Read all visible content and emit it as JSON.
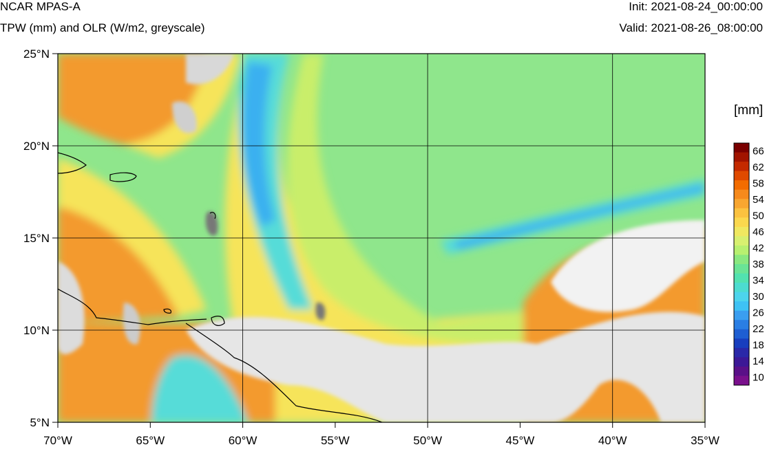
{
  "header": {
    "model": "NCAR MPAS-A",
    "fields": "TPW (mm) and OLR (W/m2, greyscale)",
    "init": "Init: 2021-08-24_00:00:00",
    "valid": "Valid: 2021-08-26_08:00:00"
  },
  "axes": {
    "lat_ticks": [
      "25°N",
      "20°N",
      "15°N",
      "10°N",
      "5°N"
    ],
    "lon_ticks": [
      "70°W",
      "65°W",
      "60°W",
      "55°W",
      "50°W",
      "45°W",
      "40°W",
      "35°W"
    ],
    "lat_range": [
      5,
      25
    ],
    "lon_range": [
      -70,
      -35
    ],
    "grid": true
  },
  "colorbar": {
    "unit": "[mm]",
    "labels": [
      "66",
      "62",
      "58",
      "54",
      "50",
      "46",
      "42",
      "38",
      "34",
      "30",
      "26",
      "22",
      "18",
      "14",
      "10"
    ],
    "colors": [
      "#7a0000",
      "#a11400",
      "#c42a00",
      "#e04a00",
      "#f36c00",
      "#f68a1c",
      "#f8a630",
      "#fbc240",
      "#fbd84e",
      "#f0e860",
      "#d8f070",
      "#b8f070",
      "#8ae880",
      "#6ae496",
      "#52e2b0",
      "#4cdcd0",
      "#4cd4ec",
      "#3ec2f4",
      "#3a9ef0",
      "#2a7ee4",
      "#1e5ed2",
      "#183ebe",
      "#2a28a8",
      "#3c1896",
      "#5a1088",
      "#7a108c"
    ]
  },
  "map": {
    "colors": {
      "ocean_green": "#8fe68c",
      "yellow": "#f6e45a",
      "orange": "#f39a2e",
      "cyan": "#56dcd8",
      "blue": "#3ab0f0",
      "cloud_white": "#f0f0f0",
      "cloud_grey": "#8a8a8a"
    }
  }
}
